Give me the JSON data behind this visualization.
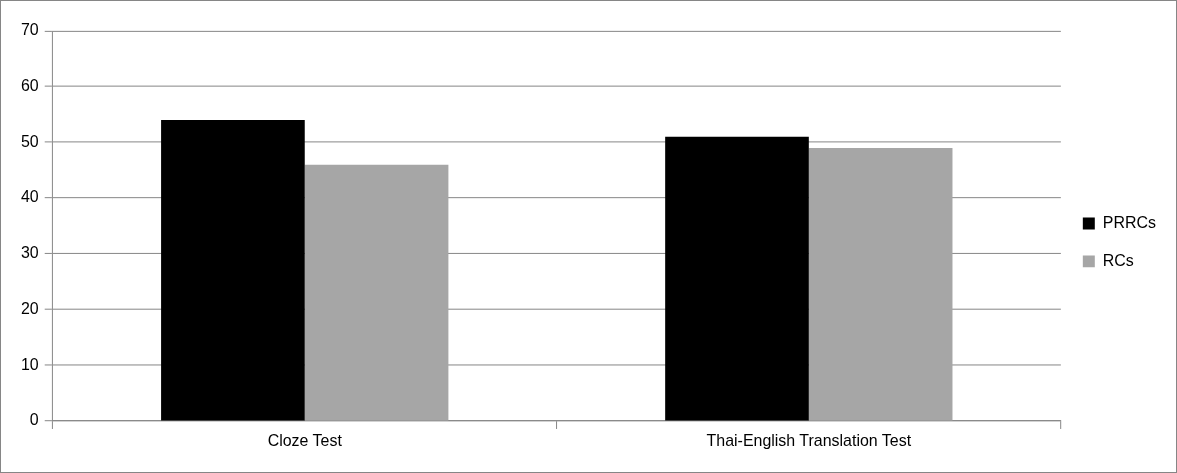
{
  "chart_data": {
    "type": "bar",
    "categories": [
      "Cloze Test",
      "Thai-English Translation Test"
    ],
    "series": [
      {
        "name": "PRRCs",
        "color": "#000000",
        "values": [
          54,
          51
        ]
      },
      {
        "name": "RCs",
        "color": "#a6a6a6",
        "values": [
          46,
          49
        ]
      }
    ],
    "ylim": [
      0,
      70
    ],
    "yticks": [
      0,
      10,
      20,
      30,
      40,
      50,
      60,
      70
    ],
    "grid": "y",
    "legend": "right"
  }
}
